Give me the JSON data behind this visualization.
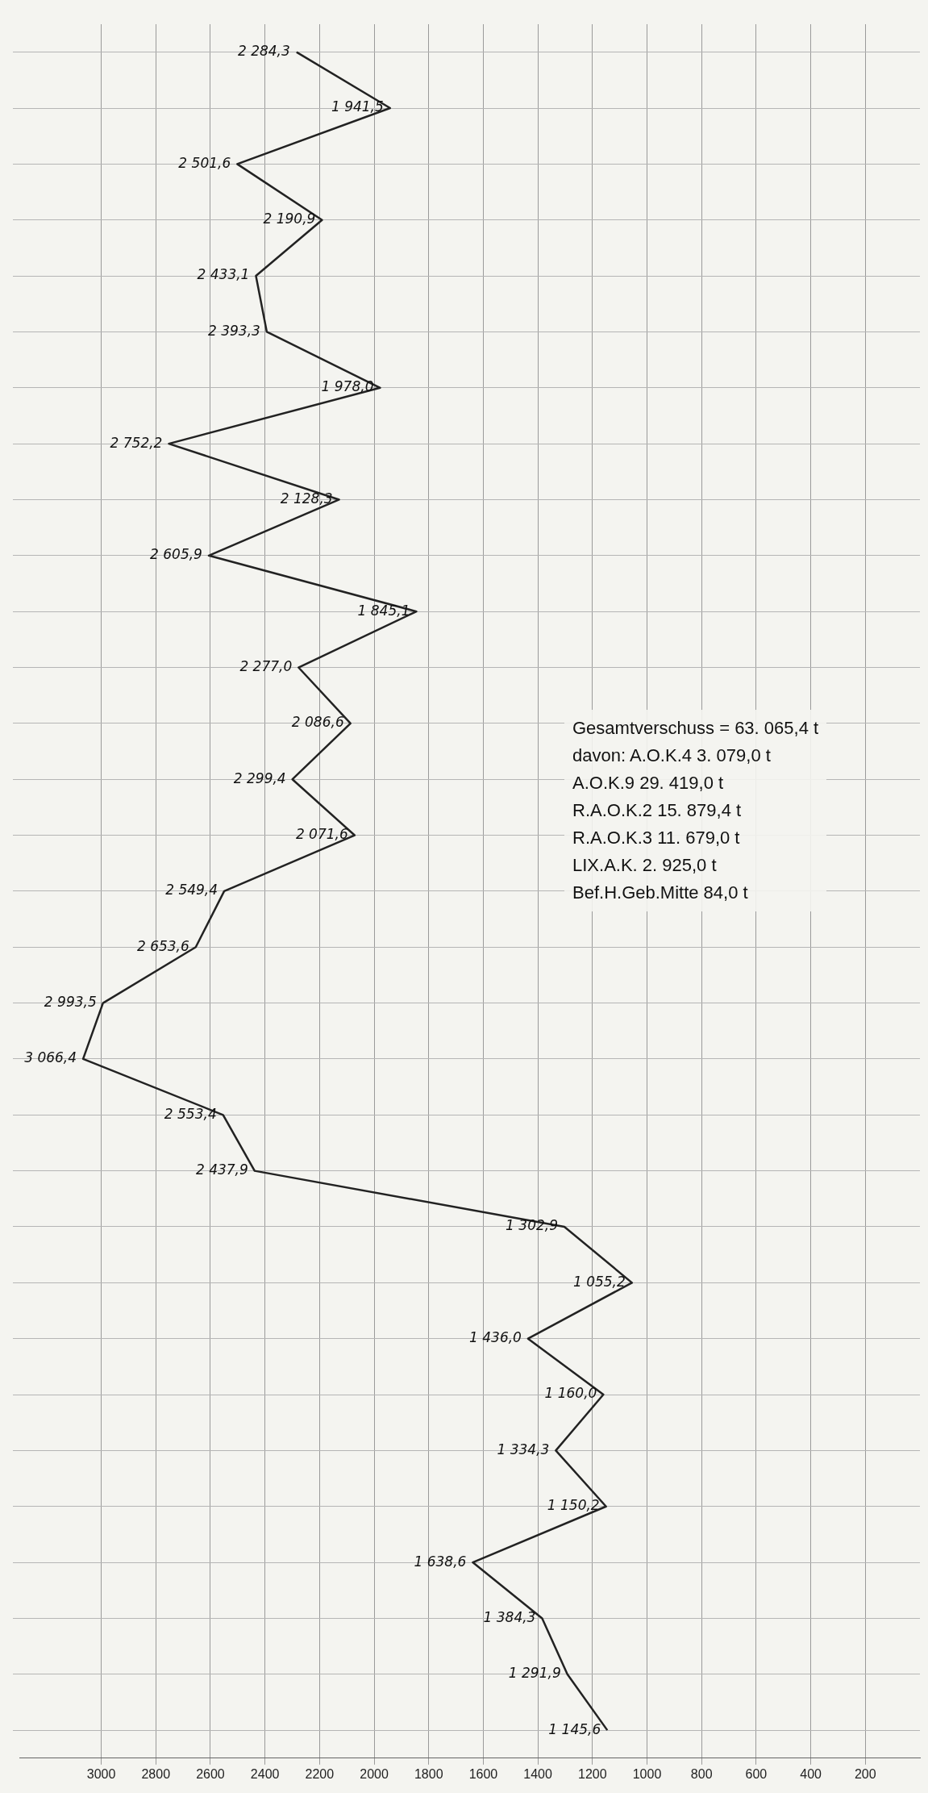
{
  "chart_data": {
    "type": "line",
    "orientation": "horizontal",
    "categories": [
      null,
      null,
      null,
      null,
      null,
      null,
      null,
      null,
      null,
      null,
      null,
      null,
      null,
      null,
      null,
      null,
      null,
      null,
      null,
      null,
      null,
      null,
      null,
      null,
      null,
      null,
      null,
      null,
      null,
      null,
      null
    ],
    "series": [
      {
        "color": "#222222",
        "values": [
          2284.3,
          1941.5,
          2501.6,
          2190.9,
          2433.1,
          2393.3,
          1978.0,
          2752.2,
          2128.3,
          2605.9,
          1845.1,
          2277.0,
          2086.6,
          2299.4,
          2071.6,
          2549.4,
          2653.6,
          2993.5,
          3066.4,
          2553.4,
          2437.9,
          1302.9,
          1055.2,
          1436.0,
          1160.0,
          1334.3,
          1150.2,
          1638.6,
          1384.3,
          1291.9,
          1145.6
        ],
        "value_labels": [
          "2 284,3",
          "1 941,5",
          "2 501,6",
          "2 190,9",
          "2 433,1",
          "2 393,3",
          "1 978,0",
          "2 752,2",
          "2 128,3",
          "2 605,9",
          "1 845,1",
          "2 277,0",
          "2 086,6",
          "2 299,4",
          "2 071,6",
          "2 549,4",
          "2 653,6",
          "2 993,5",
          "3 066,4",
          "2 553,4",
          "2 437,9",
          "1 302,9",
          "1 055,2",
          "1 436,0",
          "1 160,0",
          "1 334,3",
          "1 150,2",
          "1 638,6",
          "1 384,3",
          "1 291,9",
          "1 145,6"
        ]
      }
    ],
    "xlim": [
      3300,
      0
    ],
    "xticks": [
      3000,
      2800,
      2600,
      2400,
      2200,
      2000,
      1800,
      1600,
      1400,
      1200,
      1000,
      800,
      600,
      400,
      200
    ],
    "grid": true,
    "marker": "none",
    "line_style": "solid",
    "legend": false,
    "annotations": [
      "Gesamtverschuss = 63. 065,4 t",
      "davon: A.O.K.4 3. 079,0 t",
      "A.O.K.9 29. 419,0 t",
      "R.A.O.K.2 15. 879,4 t",
      "R.A.O.K.3 11. 679,0 t",
      "LIX.A.K. 2. 925,0 t",
      "Bef.H.Geb.Mitte 84,0 t"
    ]
  }
}
